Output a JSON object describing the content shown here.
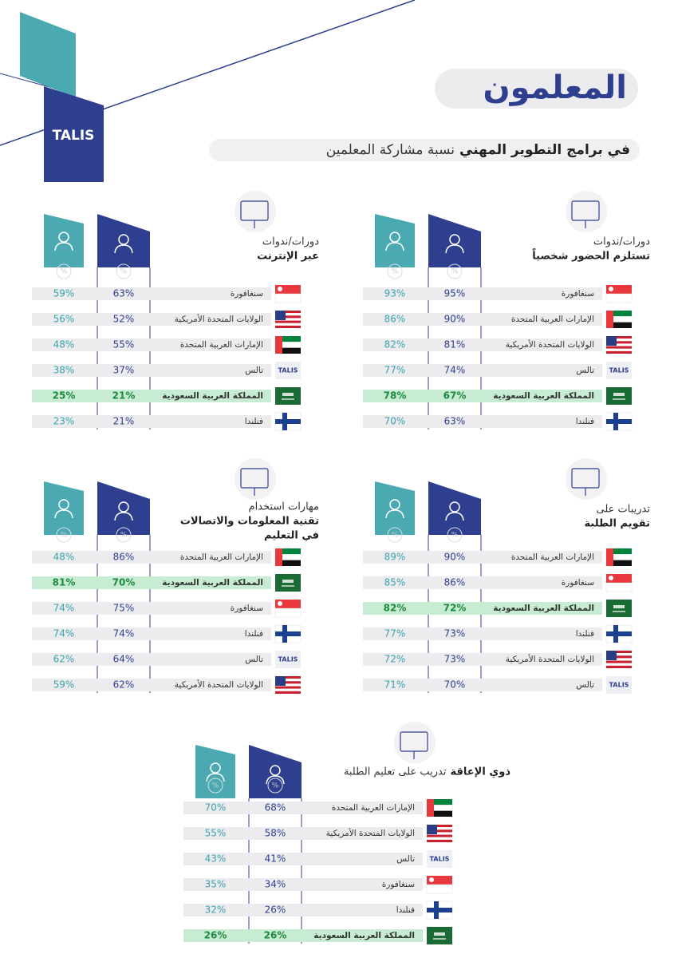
{
  "header": {
    "logo": "TALIS",
    "title": "المعلمون",
    "subtitle": [
      "نسبة مشاركة المعلمين",
      "في برامج التطوير المهني"
    ]
  },
  "percent_icon": "%",
  "panels": [
    {
      "title": [
        "دورات/ندوات",
        "تستلزم الحضور شخصياً"
      ],
      "rows": [
        {
          "country": "سنغافورة",
          "male": "95%",
          "female": "93%"
        },
        {
          "country": "الإمارات العربية المتحدة",
          "male": "90%",
          "female": "86%"
        },
        {
          "country": "الولايات المتحدة الأمريكية",
          "male": "81%",
          "female": "82%"
        },
        {
          "country": "تالس",
          "male": "74%",
          "female": "77%"
        },
        {
          "country": "المملكة العربية السعودية",
          "male": "67%",
          "female": "78%"
        },
        {
          "country": "فنلندا",
          "male": "63%",
          "female": "70%"
        }
      ]
    },
    {
      "title": [
        "دورات/ندوات",
        "عبر الإنترنت"
      ],
      "rows": [
        {
          "country": "سنغافورة",
          "male": "63%",
          "female": "59%"
        },
        {
          "country": "الولايات المتحدة الأمريكية",
          "male": "52%",
          "female": "56%"
        },
        {
          "country": "الإمارات العربية المتحدة",
          "male": "55%",
          "female": "48%"
        },
        {
          "country": "تالس",
          "male": "37%",
          "female": "38%"
        },
        {
          "country": "المملكة العربية السعودية",
          "male": "21%",
          "female": "25%"
        },
        {
          "country": "فنلندا",
          "male": "21%",
          "female": "23%"
        }
      ]
    },
    {
      "title": [
        "تدريبات على",
        "تقويم الطلبة"
      ],
      "rows": [
        {
          "country": "الإمارات العربية المتحدة",
          "male": "90%",
          "female": "89%"
        },
        {
          "country": "سنغافورة",
          "male": "86%",
          "female": "85%"
        },
        {
          "country": "المملكة العربية السعودية",
          "male": "72%",
          "female": "82%"
        },
        {
          "country": "فنلندا",
          "male": "73%",
          "female": "77%"
        },
        {
          "country": "الولايات المتحدة الأمريكية",
          "male": "73%",
          "female": "72%"
        },
        {
          "country": "تالس",
          "male": "70%",
          "female": "71%"
        }
      ]
    },
    {
      "title": [
        "مهارات استخدام",
        "تقنية المعلومات والاتصالات",
        "في التعليم"
      ],
      "rows": [
        {
          "country": "الإمارات العربية المتحدة",
          "male": "86%",
          "female": "48%"
        },
        {
          "country": "المملكة العربية السعودية",
          "male": "70%",
          "female": "81%"
        },
        {
          "country": "سنغافورة",
          "male": "75%",
          "female": "74%"
        },
        {
          "country": "فنلندا",
          "male": "74%",
          "female": "74%"
        },
        {
          "country": "تالس",
          "male": "64%",
          "female": "62%"
        },
        {
          "country": "الولايات المتحدة الأمريكية",
          "male": "62%",
          "female": "59%"
        }
      ]
    },
    {
      "title": [
        "تدريب على تعليم الطلبة",
        "ذوي الإعاقة"
      ],
      "rows": [
        {
          "country": "الإمارات العربية المتحدة",
          "male": "68%",
          "female": "70%"
        },
        {
          "country": "الولايات المتحدة الأمريكية",
          "male": "58%",
          "female": "55%"
        },
        {
          "country": "تالس",
          "male": "41%",
          "female": "43%"
        },
        {
          "country": "سنغافورة",
          "male": "34%",
          "female": "35%"
        },
        {
          "country": "فنلندا",
          "male": "26%",
          "female": "32%"
        },
        {
          "country": "المملكة العربية السعودية",
          "male": "26%",
          "female": "26%"
        }
      ]
    }
  ]
}
